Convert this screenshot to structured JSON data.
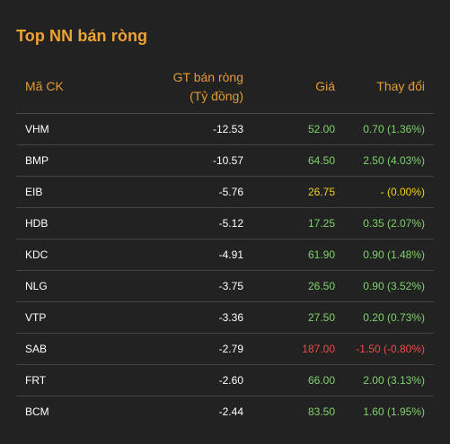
{
  "title": "Top NN bán ròng",
  "columns": {
    "code": "Mã CK",
    "value_line1": "GT bán ròng",
    "value_line2": "(Tỷ đồng)",
    "price": "Giá",
    "change": "Thay đổi"
  },
  "colors": {
    "up": "#7ed36b",
    "reference": "#f2d21b",
    "down": "#f04a45",
    "accent": "#f0a331"
  },
  "rows": [
    {
      "code": "VHM",
      "value": "-12.53",
      "price": "52.00",
      "change": "0.70 (1.36%)",
      "trend": "up"
    },
    {
      "code": "BMP",
      "value": "-10.57",
      "price": "64.50",
      "change": "2.50 (4.03%)",
      "trend": "up"
    },
    {
      "code": "EIB",
      "value": "-5.76",
      "price": "26.75",
      "change": "- (0.00%)",
      "trend": "ref"
    },
    {
      "code": "HDB",
      "value": "-5.12",
      "price": "17.25",
      "change": "0.35 (2.07%)",
      "trend": "up"
    },
    {
      "code": "KDC",
      "value": "-4.91",
      "price": "61.90",
      "change": "0.90 (1.48%)",
      "trend": "up"
    },
    {
      "code": "NLG",
      "value": "-3.75",
      "price": "26.50",
      "change": "0.90 (3.52%)",
      "trend": "up"
    },
    {
      "code": "VTP",
      "value": "-3.36",
      "price": "27.50",
      "change": "0.20 (0.73%)",
      "trend": "up"
    },
    {
      "code": "SAB",
      "value": "-2.79",
      "price": "187.00",
      "change": "-1.50 (-0.80%)",
      "trend": "down"
    },
    {
      "code": "FRT",
      "value": "-2.60",
      "price": "66.00",
      "change": "2.00 (3.13%)",
      "trend": "up"
    },
    {
      "code": "BCM",
      "value": "-2.44",
      "price": "83.50",
      "change": "1.60 (1.95%)",
      "trend": "up"
    }
  ]
}
